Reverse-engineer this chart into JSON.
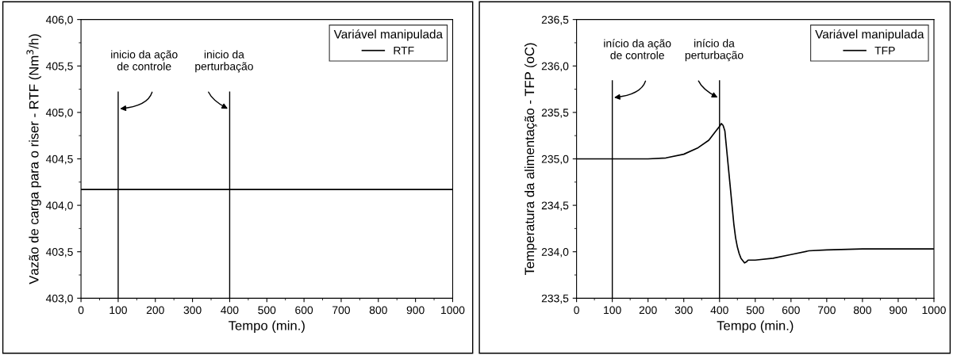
{
  "chart_data": [
    {
      "type": "line",
      "xlabel": "Tempo (min.)",
      "ylabel": "Vazão de carga para o riser - RTF (Nm$^{3}$/h)",
      "legend_title": "Variável manipulada",
      "legend": "top right",
      "series": [
        {
          "name": "RTF",
          "color": "#000000",
          "x": [
            0,
            1000
          ],
          "values": [
            404.17,
            404.17
          ]
        }
      ],
      "xlim": [
        0,
        1000
      ],
      "xticks": [
        0,
        100,
        200,
        300,
        400,
        500,
        600,
        700,
        800,
        900,
        1000
      ],
      "ylim": [
        403,
        406
      ],
      "yticks": [
        {
          "value": 403,
          "label": "403,0"
        },
        {
          "value": 403.5,
          "label": "403,5"
        },
        {
          "value": 404,
          "label": "404,0"
        },
        {
          "value": 404.5,
          "label": "404,5"
        },
        {
          "value": 405,
          "label": "405,0"
        },
        {
          "value": 405.5,
          "label": "405,5"
        },
        {
          "value": 406,
          "label": "406,0"
        }
      ],
      "ref_lines": [
        {
          "axis": "x",
          "value": 100,
          "color": "#000000",
          "label": "inicio da ação\nde controle"
        },
        {
          "axis": "x",
          "value": 400,
          "color": "#000000",
          "label": "inicio da\nperturbação"
        }
      ]
    },
    {
      "type": "line",
      "xlabel": "Tempo (min.)",
      "ylabel": "Temperatura da alimentação - TFP (oC)",
      "legend_title": "Variável manipulada",
      "legend": "top right",
      "series": [
        {
          "name": "TFP",
          "color": "#000000",
          "x": [
            0,
            100,
            200,
            250,
            300,
            340,
            370,
            390,
            400,
            405,
            410,
            415,
            420,
            425,
            430,
            435,
            440,
            445,
            450,
            455,
            460,
            470,
            475,
            480,
            500,
            550,
            600,
            650,
            700,
            800,
            1000
          ],
          "values": [
            235.0,
            235.0,
            235.0,
            235.01,
            235.05,
            235.12,
            235.2,
            235.3,
            235.35,
            235.38,
            235.36,
            235.3,
            235.1,
            234.9,
            234.7,
            234.5,
            234.3,
            234.15,
            234.05,
            233.98,
            233.93,
            233.88,
            233.89,
            233.91,
            233.91,
            233.93,
            233.97,
            234.01,
            234.02,
            234.03,
            234.03
          ]
        }
      ],
      "xlim": [
        0,
        1000
      ],
      "xticks": [
        0,
        100,
        200,
        300,
        400,
        500,
        600,
        700,
        800,
        900,
        1000
      ],
      "ylim": [
        233.5,
        236.5
      ],
      "yticks": [
        {
          "value": 233.5,
          "label": "233,5"
        },
        {
          "value": 234,
          "label": "234,0"
        },
        {
          "value": 234.5,
          "label": "234,5"
        },
        {
          "value": 235,
          "label": "235,0"
        },
        {
          "value": 235.5,
          "label": "235,5"
        },
        {
          "value": 236,
          "label": "236,0"
        },
        {
          "value": 236.5,
          "label": "236,5"
        }
      ],
      "ref_lines": [
        {
          "axis": "x",
          "value": 100,
          "color": "#000000",
          "label": "início da ação\nde controle"
        },
        {
          "axis": "x",
          "value": 400,
          "color": "#000000",
          "label": "início da\nperturbação"
        }
      ]
    }
  ]
}
